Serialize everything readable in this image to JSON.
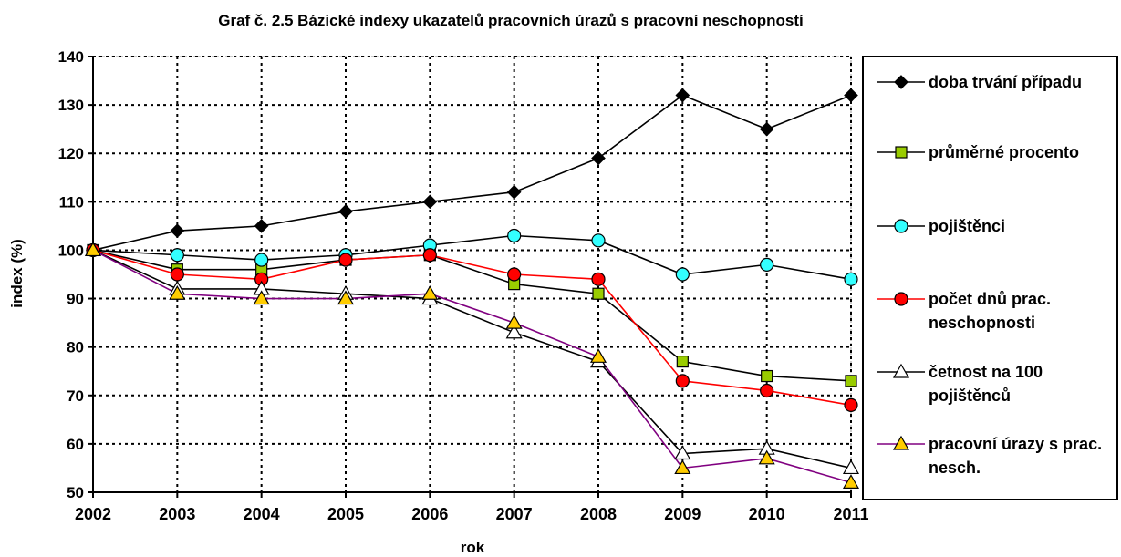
{
  "chart_data": {
    "type": "line",
    "title": "Graf č. 2.5  Bázické indexy ukazatelů pracovních úrazů s pracovní neschopností",
    "xlabel": "rok",
    "ylabel": "index (%)",
    "categories": [
      "2002",
      "2003",
      "2004",
      "2005",
      "2006",
      "2007",
      "2008",
      "2009",
      "2010",
      "2011"
    ],
    "ylim": [
      50,
      140
    ],
    "yticks": [
      50,
      60,
      70,
      80,
      90,
      100,
      110,
      120,
      130,
      140
    ],
    "grid": true,
    "series": [
      {
        "name": "doba trvání případu",
        "color": "#000000",
        "marker": "diamond",
        "marker_fill": "#000000",
        "values": [
          100,
          104,
          105,
          108,
          110,
          112,
          119,
          132,
          125,
          132
        ]
      },
      {
        "name": "průměrné procento",
        "color": "#000000",
        "marker": "square",
        "marker_fill": "#99cc00",
        "values": [
          100,
          96,
          96,
          98,
          99,
          93,
          91,
          77,
          74,
          73
        ]
      },
      {
        "name": "pojištěnci",
        "color": "#000000",
        "marker": "circle",
        "marker_fill": "#33ffff",
        "values": [
          100,
          99,
          98,
          99,
          101,
          103,
          102,
          95,
          97,
          94
        ]
      },
      {
        "name": "počet dnů prac. neschopnosti",
        "color": "#ff0000",
        "marker": "circle",
        "marker_fill": "#ff0000",
        "values": [
          100,
          95,
          94,
          98,
          99,
          95,
          94,
          73,
          71,
          68
        ]
      },
      {
        "name": "četnost na 100 pojištěnců",
        "color": "#000000",
        "marker": "triangle",
        "marker_fill": "#ffffff",
        "values": [
          100,
          92,
          92,
          91,
          90,
          83,
          77,
          58,
          59,
          55
        ]
      },
      {
        "name": "pracovní úrazy  s prac. nesch.",
        "color": "#800080",
        "marker": "triangle",
        "marker_fill": "#ffcc00",
        "values": [
          100,
          91,
          90,
          90,
          91,
          85,
          78,
          55,
          57,
          52
        ]
      }
    ]
  }
}
